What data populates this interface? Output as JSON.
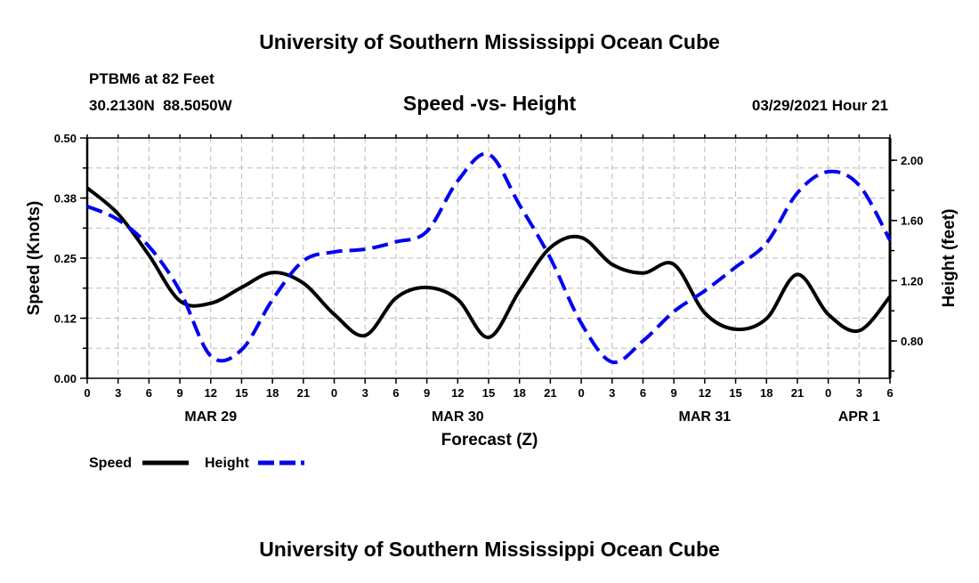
{
  "header": {
    "title": "University of Southern Mississippi Ocean Cube",
    "station": "PTBM6 at 82 Feet",
    "coords": "30.2130N  88.5050W",
    "datetime": "03/29/2021 Hour 21",
    "footer": "University of Southern Mississippi Ocean Cube"
  },
  "colors": {
    "speed": "#000000",
    "height": "#0000ee",
    "grid": "#bbbbbb"
  },
  "chart_data": {
    "type": "line",
    "title": "Speed -vs- Height",
    "xlabel": "Forecast (Z)",
    "ylabel": "Speed (Knots)",
    "y2label": "Height (feet)",
    "ylim": [
      0,
      0.5
    ],
    "y2lim": [
      0.552,
      2.148
    ],
    "xlim": [
      0,
      78
    ],
    "grid": true,
    "legend_placement": "bottom-left",
    "x_hours": [
      0,
      3,
      6,
      9,
      12,
      15,
      18,
      21,
      24,
      27,
      30,
      33,
      36,
      39,
      42,
      45,
      48,
      51,
      54,
      57,
      60,
      63,
      66,
      69,
      72,
      75,
      78
    ],
    "x_tick_labels": [
      "0",
      "3",
      "6",
      "9",
      "12",
      "15",
      "18",
      "21",
      "0",
      "3",
      "6",
      "9",
      "12",
      "15",
      "18",
      "21",
      "0",
      "3",
      "6",
      "9",
      "12",
      "15",
      "18",
      "21",
      "0",
      "3",
      "6"
    ],
    "day_labels": [
      {
        "label": "MAR 29",
        "hour": 12
      },
      {
        "label": "MAR 30",
        "hour": 36
      },
      {
        "label": "MAR 31",
        "hour": 60
      },
      {
        "label": "APR 1",
        "hour": 75
      }
    ],
    "y_tick_labels": [
      {
        "label": "0.00",
        "value": 0
      },
      {
        "label": "0.12",
        "value": 0.125
      },
      {
        "label": "0.25",
        "value": 0.25
      },
      {
        "label": "0.38",
        "value": 0.375
      },
      {
        "label": "0.50",
        "value": 0.5
      }
    ],
    "y2_tick_labels": [
      {
        "label": "0.80",
        "value": 0.8
      },
      {
        "label": "1.20",
        "value": 1.2
      },
      {
        "label": "1.60",
        "value": 1.6
      },
      {
        "label": "2.00",
        "value": 2.0
      }
    ],
    "series": [
      {
        "name": "Speed",
        "axis": "left",
        "style": "solid",
        "values": [
          0.396,
          0.342,
          0.256,
          0.161,
          0.156,
          0.189,
          0.22,
          0.198,
          0.133,
          0.089,
          0.167,
          0.189,
          0.164,
          0.085,
          0.182,
          0.272,
          0.293,
          0.237,
          0.219,
          0.237,
          0.136,
          0.102,
          0.124,
          0.216,
          0.133,
          0.099,
          0.17
        ]
      },
      {
        "name": "Height",
        "axis": "right",
        "style": "dashed",
        "values": [
          1.694,
          1.605,
          1.428,
          1.133,
          0.7,
          0.741,
          1.074,
          1.332,
          1.391,
          1.409,
          1.458,
          1.527,
          1.863,
          2.04,
          1.704,
          1.35,
          0.918,
          0.66,
          0.8,
          0.995,
          1.133,
          1.29,
          1.45,
          1.783,
          1.924,
          1.834,
          1.468
        ]
      }
    ]
  }
}
